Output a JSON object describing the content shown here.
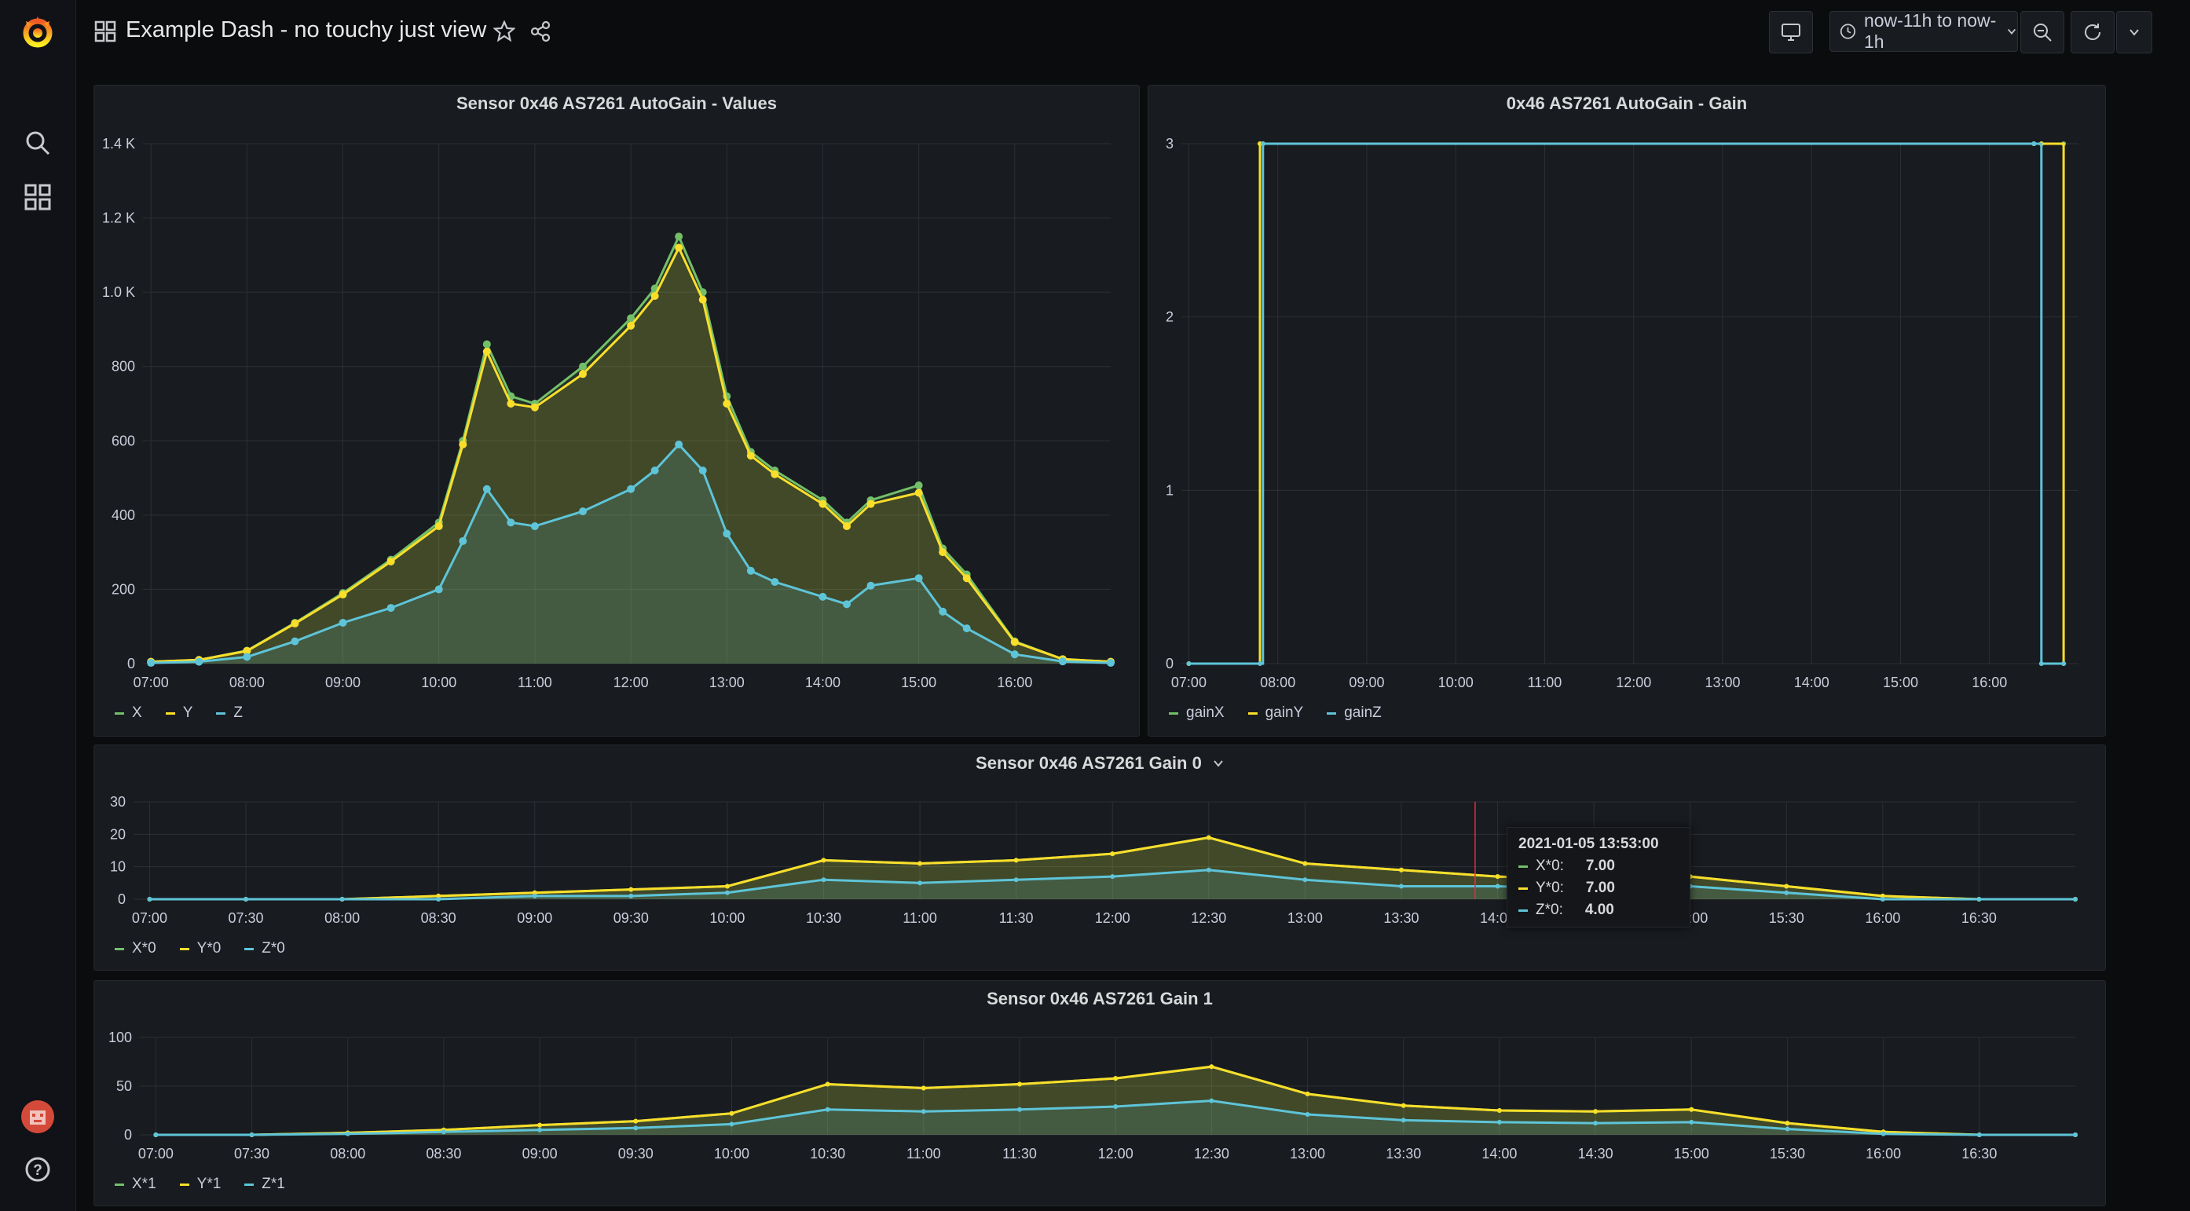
{
  "header": {
    "title": "Example Dash - no touchy just view",
    "time_range": "now-11h to now-1h"
  },
  "panels": [
    {
      "title": "Sensor 0x46 AS7261 AutoGain - Values",
      "legend": [
        "X",
        "Y",
        "Z"
      ],
      "colors": [
        "#73bf69",
        "#fade2a",
        "#5ec4d8"
      ]
    },
    {
      "title": "0x46 AS7261 AutoGain - Gain",
      "legend": [
        "gainX",
        "gainY",
        "gainZ"
      ],
      "colors": [
        "#73bf69",
        "#fade2a",
        "#5ec4d8"
      ]
    },
    {
      "title": "Sensor 0x46 AS7261 Gain 0",
      "legend": [
        "X*0",
        "Y*0",
        "Z*0"
      ],
      "colors": [
        "#73bf69",
        "#fade2a",
        "#5ec4d8"
      ]
    },
    {
      "title": "Sensor 0x46 AS7261 Gain 1",
      "legend": [
        "X*1",
        "Y*1",
        "Z*1"
      ],
      "colors": [
        "#73bf69",
        "#fade2a",
        "#5ec4d8"
      ]
    }
  ],
  "tooltip": {
    "time": "2021-01-05 13:53:00",
    "rows": [
      {
        "label": "X*0:",
        "value": "7.00"
      },
      {
        "label": "Y*0:",
        "value": "7.00"
      },
      {
        "label": "Z*0:",
        "value": "4.00"
      }
    ]
  },
  "chart_data": [
    {
      "type": "area",
      "title": "Sensor 0x46 AS7261 AutoGain - Values",
      "x": [
        "07:00",
        "07:30",
        "08:00",
        "08:30",
        "09:00",
        "09:30",
        "10:00",
        "10:15",
        "10:30",
        "10:45",
        "11:00",
        "11:30",
        "12:00",
        "12:15",
        "12:30",
        "12:45",
        "13:00",
        "13:15",
        "13:30",
        "14:00",
        "14:15",
        "14:30",
        "15:00",
        "15:15",
        "15:30",
        "16:00",
        "16:30",
        "17:00"
      ],
      "xticks": [
        "07:00",
        "08:00",
        "09:00",
        "10:00",
        "11:00",
        "12:00",
        "13:00",
        "14:00",
        "15:00",
        "16:00"
      ],
      "yticks": [
        "0",
        "200",
        "400",
        "600",
        "800",
        "1.0 K",
        "1.2 K",
        "1.4 K"
      ],
      "ylim": [
        0,
        1400
      ],
      "series": [
        {
          "name": "X",
          "values": [
            5,
            10,
            35,
            110,
            190,
            280,
            380,
            600,
            860,
            720,
            700,
            800,
            930,
            1010,
            1150,
            1000,
            720,
            570,
            520,
            440,
            380,
            440,
            480,
            310,
            240,
            60,
            12,
            5
          ]
        },
        {
          "name": "Y",
          "values": [
            5,
            10,
            34,
            108,
            186,
            275,
            370,
            590,
            840,
            700,
            690,
            780,
            910,
            990,
            1120,
            980,
            700,
            560,
            510,
            430,
            370,
            430,
            460,
            300,
            230,
            58,
            12,
            5
          ]
        },
        {
          "name": "Z",
          "values": [
            2,
            5,
            18,
            60,
            110,
            150,
            200,
            330,
            470,
            380,
            370,
            410,
            470,
            520,
            590,
            520,
            350,
            250,
            220,
            180,
            160,
            210,
            230,
            140,
            95,
            25,
            6,
            2
          ]
        }
      ]
    },
    {
      "type": "line",
      "title": "0x46 AS7261 AutoGain - Gain",
      "x": [
        "07:00",
        "07:48",
        "07:50",
        "16:30",
        "16:35",
        "16:50"
      ],
      "xticks": [
        "07:00",
        "08:00",
        "09:00",
        "10:00",
        "11:00",
        "12:00",
        "13:00",
        "14:00",
        "15:00",
        "16:00"
      ],
      "yticks": [
        "0",
        "1",
        "2",
        "3"
      ],
      "ylim": [
        0,
        3
      ],
      "series": [
        {
          "name": "gainX",
          "values": [
            0,
            3,
            3,
            3,
            3,
            3
          ]
        },
        {
          "name": "gainY",
          "values": [
            0,
            3,
            3,
            3,
            3,
            0
          ]
        },
        {
          "name": "gainZ",
          "values": [
            0,
            0,
            3,
            3,
            0,
            0
          ]
        }
      ]
    },
    {
      "type": "area",
      "title": "Sensor 0x46 AS7261 Gain 0",
      "x": [
        "07:00",
        "07:30",
        "08:00",
        "08:30",
        "09:00",
        "09:30",
        "10:00",
        "10:30",
        "11:00",
        "11:30",
        "12:00",
        "12:30",
        "13:00",
        "13:30",
        "14:00",
        "14:30",
        "15:00",
        "15:30",
        "16:00",
        "16:30",
        "17:00"
      ],
      "xticks": [
        "07:00",
        "07:30",
        "08:00",
        "08:30",
        "09:00",
        "09:30",
        "10:00",
        "10:30",
        "11:00",
        "11:30",
        "12:00",
        "12:30",
        "13:00",
        "13:30",
        "14:00",
        "14:30",
        "15:00",
        "15:30",
        "16:00",
        "16:30"
      ],
      "yticks": [
        "0",
        "10",
        "20",
        "30"
      ],
      "ylim": [
        0,
        30
      ],
      "series": [
        {
          "name": "X*0",
          "values": [
            0,
            0,
            0,
            1,
            2,
            3,
            4,
            12,
            11,
            12,
            14,
            19,
            11,
            9,
            7,
            6,
            7,
            4,
            1,
            0,
            0
          ]
        },
        {
          "name": "Y*0",
          "values": [
            0,
            0,
            0,
            1,
            2,
            3,
            4,
            12,
            11,
            12,
            14,
            19,
            11,
            9,
            7,
            6,
            7,
            4,
            1,
            0,
            0
          ]
        },
        {
          "name": "Z*0",
          "values": [
            0,
            0,
            0,
            0,
            1,
            1,
            2,
            6,
            5,
            6,
            7,
            9,
            6,
            4,
            4,
            3,
            4,
            2,
            0,
            0,
            0
          ]
        }
      ]
    },
    {
      "type": "area",
      "title": "Sensor 0x46 AS7261 Gain 1",
      "x": [
        "07:00",
        "07:30",
        "08:00",
        "08:30",
        "09:00",
        "09:30",
        "10:00",
        "10:30",
        "11:00",
        "11:30",
        "12:00",
        "12:30",
        "13:00",
        "13:30",
        "14:00",
        "14:30",
        "15:00",
        "15:30",
        "16:00",
        "16:30",
        "17:00"
      ],
      "xticks": [
        "07:00",
        "07:30",
        "08:00",
        "08:30",
        "09:00",
        "09:30",
        "10:00",
        "10:30",
        "11:00",
        "11:30",
        "12:00",
        "12:30",
        "13:00",
        "13:30",
        "14:00",
        "14:30",
        "15:00",
        "15:30",
        "16:00",
        "16:30"
      ],
      "yticks": [
        "0",
        "50",
        "100"
      ],
      "ylim": [
        0,
        100
      ],
      "series": [
        {
          "name": "X*1",
          "values": [
            0,
            0,
            2,
            5,
            10,
            14,
            22,
            52,
            48,
            52,
            58,
            70,
            42,
            30,
            25,
            24,
            26,
            12,
            3,
            0,
            0
          ]
        },
        {
          "name": "Y*1",
          "values": [
            0,
            0,
            2,
            5,
            10,
            14,
            22,
            52,
            48,
            52,
            58,
            70,
            42,
            30,
            25,
            24,
            26,
            12,
            3,
            0,
            0
          ]
        },
        {
          "name": "Z*1",
          "values": [
            0,
            0,
            1,
            3,
            5,
            7,
            11,
            26,
            24,
            26,
            29,
            35,
            21,
            15,
            13,
            12,
            13,
            6,
            1,
            0,
            0
          ]
        }
      ]
    }
  ]
}
